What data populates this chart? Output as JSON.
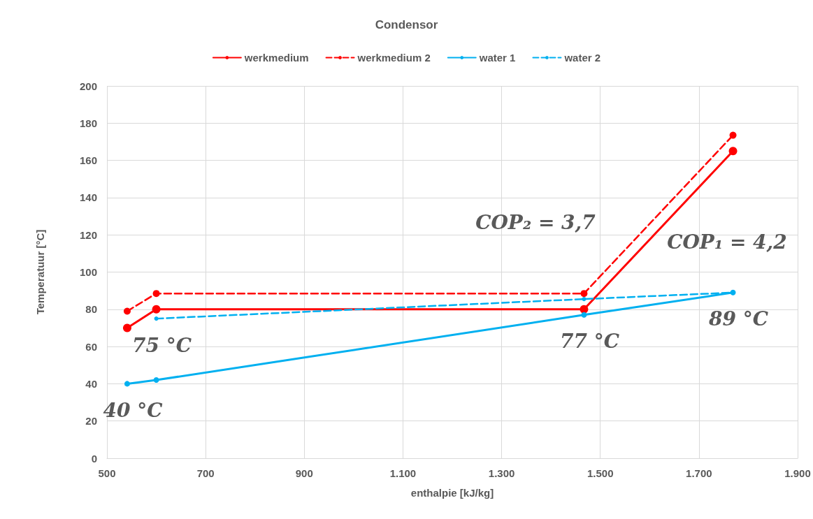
{
  "chart_data": {
    "type": "line",
    "title": "Condensor",
    "xlabel": "enthalpie [kJ/kg]",
    "ylabel": "Temperatuur [°C]",
    "series": [
      {
        "name": "werkmedium",
        "color": "#ff0000",
        "line_style": "solid",
        "x": [
          541,
          600,
          1467,
          1769
        ],
        "values": [
          70,
          80,
          80,
          165
        ]
      },
      {
        "name": "werkmedium 2",
        "color": "#ff0000",
        "line_style": "dashed",
        "x": [
          541,
          600,
          1467,
          1769
        ],
        "values": [
          79,
          88.5,
          88.5,
          173.5
        ]
      },
      {
        "name": "water 1",
        "color": "#00b0f0",
        "line_style": "solid",
        "x": [
          541,
          600,
          1467,
          1769
        ],
        "values": [
          40,
          42,
          77,
          89
        ]
      },
      {
        "name": "water 2",
        "color": "#00b0f0",
        "line_style": "dashed",
        "x": [
          600,
          1467,
          1769
        ],
        "values": [
          75,
          85.5,
          89
        ]
      }
    ],
    "xlim": [
      500,
      1900
    ],
    "xticks": [
      500,
      700,
      900,
      {
        "value": 1100,
        "label": "1.100"
      },
      {
        "value": 1300,
        "label": "1.300"
      },
      {
        "value": 1500,
        "label": "1.500"
      },
      {
        "value": 1700,
        "label": "1.700"
      },
      {
        "value": 1900,
        "label": "1.900"
      }
    ],
    "ylim": [
      0,
      200
    ],
    "yticks": [
      0,
      20,
      40,
      60,
      80,
      100,
      120,
      140,
      160,
      180,
      200
    ],
    "annotations": [
      {
        "text": "40 °C",
        "x": 541,
        "y": 40
      },
      {
        "text": "75 °C",
        "x": 600,
        "y": 75
      },
      {
        "text": "77 °C",
        "x": 1467,
        "y": 77
      },
      {
        "text": "89 °C",
        "x": 1769,
        "y": 89
      },
      "COP₂ = 3,7",
      "COP₁ = 4,2"
    ],
    "grid": true,
    "legend": "top",
    "marker": "circle"
  }
}
